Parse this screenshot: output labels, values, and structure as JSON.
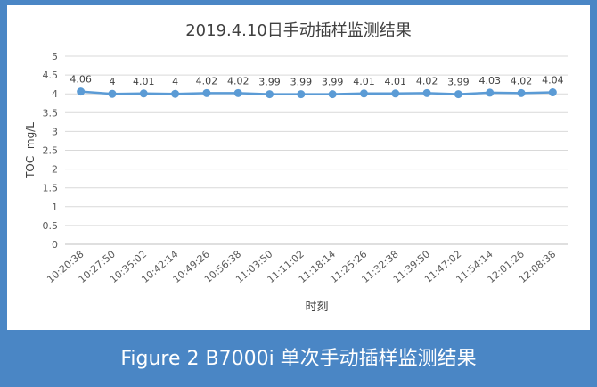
{
  "chart_data": {
    "type": "line",
    "title": "2019.4.10日手动插样监测结果",
    "xlabel": "时刻",
    "ylabel": "TOC  mg/L",
    "ylim": [
      0,
      5
    ],
    "yticks": [
      "0",
      "0.5",
      "1",
      "1.5",
      "2",
      "2.5",
      "3",
      "3.5",
      "4",
      "4.5",
      "5"
    ],
    "categories": [
      "10:20:38",
      "10:27:50",
      "10:35:02",
      "10:42:14",
      "10:49:26",
      "10:56:38",
      "11:03:50",
      "11:11:02",
      "11:18:14",
      "11:25:26",
      "11:32:38",
      "11:39:50",
      "11:47:02",
      "11:54:14",
      "12:01:26",
      "12:08:38"
    ],
    "series": [
      {
        "values": [
          4.06,
          4,
          4.01,
          4,
          4.02,
          4.02,
          3.99,
          3.99,
          3.99,
          4.01,
          4.01,
          4.02,
          3.99,
          4.03,
          4.02,
          4.04
        ],
        "labels": [
          "4.06",
          "4",
          "4.01",
          "4",
          "4.02",
          "4.02",
          "3.99",
          "3.99",
          "3.99",
          "4.01",
          "4.01",
          "4.02",
          "3.99",
          "4.03",
          "4.02",
          "4.04"
        ],
        "color": "#5b9bd5"
      }
    ],
    "grid": true,
    "legend": "none"
  },
  "caption": "Figure 2 B7000i 单次手动插样监测结果"
}
